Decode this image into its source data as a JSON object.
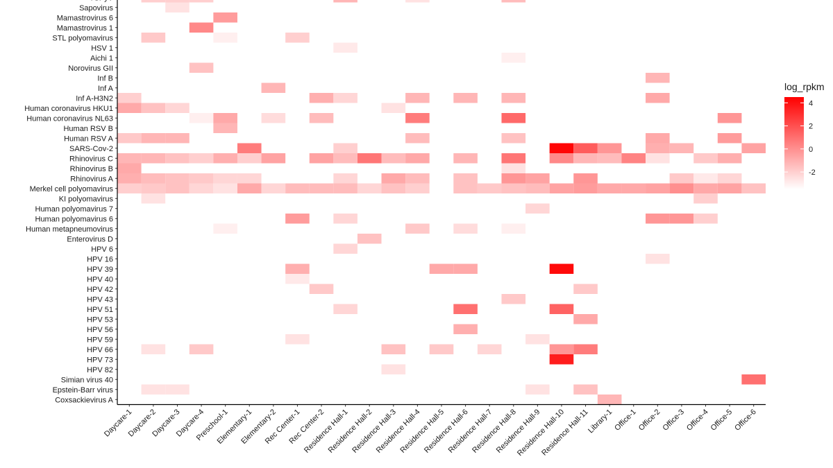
{
  "chart_data": {
    "type": "heatmap",
    "legend": {
      "title": "log_rpkm",
      "ticks": [
        4,
        2,
        0,
        -2
      ],
      "range": [
        -3.5,
        4.5
      ],
      "colors": [
        "#ffffff",
        "#ff0000"
      ],
      "placement": "right"
    },
    "colors": {
      "low": "#ffffff",
      "high": "#ff0000",
      "axis": "#000000"
    },
    "x_categories": [
      "Daycare-1",
      "Daycare-2",
      "Daycare-3",
      "Daycare-4",
      "Preschool-1",
      "Elementary-1",
      "Elementary-2",
      "Rec Center-1",
      "Rec Center-2",
      "Residence Hall-1",
      "Residence Hall-2",
      "Residence Hall-3",
      "Residence Hall-4",
      "Residence Hall-5",
      "Residence Hall-6",
      "Residence Hall-7",
      "Residence Hall-8",
      "Residence Hall-9",
      "Residence Hall-10",
      "Residence Hall-11",
      "Library-1",
      "Office-1",
      "Office-2",
      "Office-3",
      "Office-4",
      "Office-5",
      "Office-6"
    ],
    "y_categories": [
      "TSPyV",
      "Sapovirus",
      "Mamastrovirus 6",
      "Mamastrovirus 1",
      "STL polyomavirus",
      "HSV 1",
      "Aichi 1",
      "Norovirus GII",
      "Inf B",
      "Inf A",
      "Inf A-H3N2",
      "Human coronavirus HKU1",
      "Human coronavirus NL63",
      "Human RSV B",
      "Human RSV A",
      "SARS-Cov-2",
      "Rhinovirus C",
      "Rhinovirus B",
      "Rhinovirus A",
      "Merkel cell polyomavirus",
      "KI polyomavirus",
      "Human polyomavirus 7",
      "Human polyomavirus 6",
      "Human metapneumovirus",
      "Enterovirus D",
      "HPV 6",
      "HPV 16",
      "HPV 39",
      "HPV 40",
      "HPV 42",
      "HPV 43",
      "HPV 51",
      "HPV 53",
      "HPV 56",
      "HPV 59",
      "HPV 66",
      "HPV 73",
      "HPV 82",
      "Simian virus 40",
      "Epstein-Barr virus",
      "Coxsackievirus A"
    ],
    "cells": [
      {
        "x": "Daycare-2",
        "y": "TSPyV",
        "v": -2
      },
      {
        "x": "Daycare-3",
        "y": "TSPyV",
        "v": -2
      },
      {
        "x": "Daycare-4",
        "y": "TSPyV",
        "v": -2
      },
      {
        "x": "Residence Hall-1",
        "y": "TSPyV",
        "v": -1.2
      },
      {
        "x": "Residence Hall-4",
        "y": "TSPyV",
        "v": -2.6
      },
      {
        "x": "Residence Hall-8",
        "y": "TSPyV",
        "v": -1.4
      },
      {
        "x": "Daycare-3",
        "y": "Sapovirus",
        "v": -2.6
      },
      {
        "x": "Preschool-1",
        "y": "Mamastrovirus 6",
        "v": -0.4
      },
      {
        "x": "Daycare-4",
        "y": "Mamastrovirus 1",
        "v": 0.2
      },
      {
        "x": "Daycare-2",
        "y": "STL polyomavirus",
        "v": -1.8
      },
      {
        "x": "Preschool-1",
        "y": "STL polyomavirus",
        "v": -3
      },
      {
        "x": "Rec Center-1",
        "y": "STL polyomavirus",
        "v": -2
      },
      {
        "x": "Residence Hall-1",
        "y": "HSV 1",
        "v": -2.8
      },
      {
        "x": "Residence Hall-8",
        "y": "Aichi 1",
        "v": -3
      },
      {
        "x": "Daycare-4",
        "y": "Norovirus GII",
        "v": -1.6
      },
      {
        "x": "Office-2",
        "y": "Inf B",
        "v": -1.2
      },
      {
        "x": "Elementary-2",
        "y": "Inf A",
        "v": -1.2
      },
      {
        "x": "Daycare-1",
        "y": "Inf A-H3N2",
        "v": -2
      },
      {
        "x": "Rec Center-2",
        "y": "Inf A-H3N2",
        "v": -1
      },
      {
        "x": "Residence Hall-1",
        "y": "Inf A-H3N2",
        "v": -2.2
      },
      {
        "x": "Residence Hall-4",
        "y": "Inf A-H3N2",
        "v": -1.2
      },
      {
        "x": "Residence Hall-6",
        "y": "Inf A-H3N2",
        "v": -1.2
      },
      {
        "x": "Residence Hall-8",
        "y": "Inf A-H3N2",
        "v": -1.2
      },
      {
        "x": "Office-2",
        "y": "Inf A-H3N2",
        "v": -0.8
      },
      {
        "x": "Daycare-1",
        "y": "Human coronavirus HKU1",
        "v": -0.8
      },
      {
        "x": "Daycare-2",
        "y": "Human coronavirus HKU1",
        "v": -1.6
      },
      {
        "x": "Daycare-3",
        "y": "Human coronavirus HKU1",
        "v": -2.2
      },
      {
        "x": "Residence Hall-3",
        "y": "Human coronavirus HKU1",
        "v": -2.6
      },
      {
        "x": "Daycare-4",
        "y": "Human coronavirus NL63",
        "v": -3
      },
      {
        "x": "Preschool-1",
        "y": "Human coronavirus NL63",
        "v": -0.8
      },
      {
        "x": "Elementary-2",
        "y": "Human coronavirus NL63",
        "v": -2.4
      },
      {
        "x": "Rec Center-2",
        "y": "Human coronavirus NL63",
        "v": -1.4
      },
      {
        "x": "Residence Hall-4",
        "y": "Human coronavirus NL63",
        "v": 0.6
      },
      {
        "x": "Residence Hall-8",
        "y": "Human coronavirus NL63",
        "v": 1.2
      },
      {
        "x": "Office-5",
        "y": "Human coronavirus NL63",
        "v": -0.2
      },
      {
        "x": "Preschool-1",
        "y": "Human RSV B",
        "v": -1.2
      },
      {
        "x": "Daycare-1",
        "y": "Human RSV A",
        "v": -1.8
      },
      {
        "x": "Daycare-2",
        "y": "Human RSV A",
        "v": -1.2
      },
      {
        "x": "Daycare-3",
        "y": "Human RSV A",
        "v": -1.2
      },
      {
        "x": "Residence Hall-4",
        "y": "Human RSV A",
        "v": -1.4
      },
      {
        "x": "Residence Hall-8",
        "y": "Human RSV A",
        "v": -1.6
      },
      {
        "x": "Office-2",
        "y": "Human RSV A",
        "v": -0.8
      },
      {
        "x": "Office-5",
        "y": "Human RSV A",
        "v": -0.4
      },
      {
        "x": "Elementary-1",
        "y": "SARS-Cov-2",
        "v": 0.6
      },
      {
        "x": "Residence Hall-1",
        "y": "SARS-Cov-2",
        "v": -2
      },
      {
        "x": "Residence Hall-10",
        "y": "SARS-Cov-2",
        "v": 4.3
      },
      {
        "x": "Residence Hall-11",
        "y": "SARS-Cov-2",
        "v": 1.6
      },
      {
        "x": "Library-1",
        "y": "SARS-Cov-2",
        "v": -0.2
      },
      {
        "x": "Office-2",
        "y": "SARS-Cov-2",
        "v": -1
      },
      {
        "x": "Office-3",
        "y": "SARS-Cov-2",
        "v": -1.2
      },
      {
        "x": "Office-6",
        "y": "SARS-Cov-2",
        "v": -0.6
      },
      {
        "x": "Daycare-1",
        "y": "Rhinovirus C",
        "v": -1.2
      },
      {
        "x": "Daycare-2",
        "y": "Rhinovirus C",
        "v": -1.2
      },
      {
        "x": "Daycare-3",
        "y": "Rhinovirus C",
        "v": -1.6
      },
      {
        "x": "Daycare-4",
        "y": "Rhinovirus C",
        "v": -2
      },
      {
        "x": "Preschool-1",
        "y": "Rhinovirus C",
        "v": -1
      },
      {
        "x": "Elementary-1",
        "y": "Rhinovirus C",
        "v": -2
      },
      {
        "x": "Elementary-2",
        "y": "Rhinovirus C",
        "v": -0.6
      },
      {
        "x": "Rec Center-2",
        "y": "Rhinovirus C",
        "v": -0.6
      },
      {
        "x": "Residence Hall-1",
        "y": "Rhinovirus C",
        "v": -1.4
      },
      {
        "x": "Residence Hall-2",
        "y": "Rhinovirus C",
        "v": 0.8
      },
      {
        "x": "Residence Hall-3",
        "y": "Rhinovirus C",
        "v": -1.4
      },
      {
        "x": "Residence Hall-4",
        "y": "Rhinovirus C",
        "v": -0.8
      },
      {
        "x": "Residence Hall-6",
        "y": "Rhinovirus C",
        "v": -1.2
      },
      {
        "x": "Residence Hall-8",
        "y": "Rhinovirus C",
        "v": 0.8
      },
      {
        "x": "Residence Hall-10",
        "y": "Rhinovirus C",
        "v": 0.2
      },
      {
        "x": "Residence Hall-11",
        "y": "Rhinovirus C",
        "v": -1.2
      },
      {
        "x": "Library-1",
        "y": "Rhinovirus C",
        "v": -1.4
      },
      {
        "x": "Office-1",
        "y": "Rhinovirus C",
        "v": 0.4
      },
      {
        "x": "Office-2",
        "y": "Rhinovirus C",
        "v": -2.6
      },
      {
        "x": "Office-4",
        "y": "Rhinovirus C",
        "v": -1.8
      },
      {
        "x": "Office-5",
        "y": "Rhinovirus C",
        "v": -1
      },
      {
        "x": "Daycare-1",
        "y": "Rhinovirus B",
        "v": -0.8
      },
      {
        "x": "Residence Hall-8",
        "y": "Rhinovirus B",
        "v": -2.6
      },
      {
        "x": "Daycare-1",
        "y": "Rhinovirus A",
        "v": -1
      },
      {
        "x": "Daycare-2",
        "y": "Rhinovirus A",
        "v": -1.4
      },
      {
        "x": "Daycare-3",
        "y": "Rhinovirus A",
        "v": -1.6
      },
      {
        "x": "Daycare-4",
        "y": "Rhinovirus A",
        "v": -1.8
      },
      {
        "x": "Preschool-1",
        "y": "Rhinovirus A",
        "v": -2.2
      },
      {
        "x": "Elementary-1",
        "y": "Rhinovirus A",
        "v": -2.2
      },
      {
        "x": "Residence Hall-1",
        "y": "Rhinovirus A",
        "v": -2.2
      },
      {
        "x": "Residence Hall-3",
        "y": "Rhinovirus A",
        "v": -0.8
      },
      {
        "x": "Residence Hall-4",
        "y": "Rhinovirus A",
        "v": -1.4
      },
      {
        "x": "Residence Hall-6",
        "y": "Rhinovirus A",
        "v": -1.6
      },
      {
        "x": "Residence Hall-8",
        "y": "Rhinovirus A",
        "v": -0.2
      },
      {
        "x": "Residence Hall-9",
        "y": "Rhinovirus A",
        "v": -0.6
      },
      {
        "x": "Residence Hall-11",
        "y": "Rhinovirus A",
        "v": -0.2
      },
      {
        "x": "Office-3",
        "y": "Rhinovirus A",
        "v": -1.8
      },
      {
        "x": "Office-4",
        "y": "Rhinovirus A",
        "v": -2.8
      },
      {
        "x": "Office-5",
        "y": "Rhinovirus A",
        "v": -2.2
      },
      {
        "x": "Daycare-1",
        "y": "Merkel cell polyomavirus",
        "v": -2
      },
      {
        "x": "Daycare-2",
        "y": "Merkel cell polyomavirus",
        "v": -1.8
      },
      {
        "x": "Daycare-3",
        "y": "Merkel cell polyomavirus",
        "v": -1.6
      },
      {
        "x": "Daycare-4",
        "y": "Merkel cell polyomavirus",
        "v": -2.2
      },
      {
        "x": "Preschool-1",
        "y": "Merkel cell polyomavirus",
        "v": -2.6
      },
      {
        "x": "Elementary-1",
        "y": "Merkel cell polyomavirus",
        "v": -0.8
      },
      {
        "x": "Elementary-2",
        "y": "Merkel cell polyomavirus",
        "v": -2.2
      },
      {
        "x": "Rec Center-1",
        "y": "Merkel cell polyomavirus",
        "v": -1.4
      },
      {
        "x": "Rec Center-2",
        "y": "Merkel cell polyomavirus",
        "v": -1.4
      },
      {
        "x": "Residence Hall-1",
        "y": "Merkel cell polyomavirus",
        "v": -1.4
      },
      {
        "x": "Residence Hall-2",
        "y": "Merkel cell polyomavirus",
        "v": -2.2
      },
      {
        "x": "Residence Hall-3",
        "y": "Merkel cell polyomavirus",
        "v": -1.6
      },
      {
        "x": "Residence Hall-4",
        "y": "Merkel cell polyomavirus",
        "v": -2
      },
      {
        "x": "Residence Hall-6",
        "y": "Merkel cell polyomavirus",
        "v": -1.6
      },
      {
        "x": "Residence Hall-7",
        "y": "Merkel cell polyomavirus",
        "v": -1.8
      },
      {
        "x": "Residence Hall-8",
        "y": "Merkel cell polyomavirus",
        "v": -1.6
      },
      {
        "x": "Residence Hall-9",
        "y": "Merkel cell polyomavirus",
        "v": -1.4
      },
      {
        "x": "Residence Hall-10",
        "y": "Merkel cell polyomavirus",
        "v": -0.6
      },
      {
        "x": "Residence Hall-11",
        "y": "Merkel cell polyomavirus",
        "v": -0.4
      },
      {
        "x": "Library-1",
        "y": "Merkel cell polyomavirus",
        "v": -0.8
      },
      {
        "x": "Office-1",
        "y": "Merkel cell polyomavirus",
        "v": -0.8
      },
      {
        "x": "Office-2",
        "y": "Merkel cell polyomavirus",
        "v": -0.6
      },
      {
        "x": "Office-3",
        "y": "Merkel cell polyomavirus",
        "v": 0
      },
      {
        "x": "Office-4",
        "y": "Merkel cell polyomavirus",
        "v": -0.8
      },
      {
        "x": "Office-5",
        "y": "Merkel cell polyomavirus",
        "v": -0.6
      },
      {
        "x": "Office-6",
        "y": "Merkel cell polyomavirus",
        "v": -1.6
      },
      {
        "x": "Daycare-2",
        "y": "KI polyomavirus",
        "v": -2.6
      },
      {
        "x": "Office-4",
        "y": "KI polyomavirus",
        "v": -2
      },
      {
        "x": "Residence Hall-9",
        "y": "Human polyomavirus 7",
        "v": -2.2
      },
      {
        "x": "Rec Center-1",
        "y": "Human polyomavirus 6",
        "v": -0.4
      },
      {
        "x": "Residence Hall-1",
        "y": "Human polyomavirus 6",
        "v": -2.2
      },
      {
        "x": "Office-2",
        "y": "Human polyomavirus 6",
        "v": -0.2
      },
      {
        "x": "Office-3",
        "y": "Human polyomavirus 6",
        "v": -0.2
      },
      {
        "x": "Office-4",
        "y": "Human polyomavirus 6",
        "v": -2
      },
      {
        "x": "Preschool-1",
        "y": "Human metapneumovirus",
        "v": -3
      },
      {
        "x": "Residence Hall-4",
        "y": "Human metapneumovirus",
        "v": -1.8
      },
      {
        "x": "Residence Hall-6",
        "y": "Human metapneumovirus",
        "v": -2.4
      },
      {
        "x": "Residence Hall-8",
        "y": "Human metapneumovirus",
        "v": -3
      },
      {
        "x": "Residence Hall-2",
        "y": "Enterovirus D",
        "v": -1.6
      },
      {
        "x": "Residence Hall-1",
        "y": "HPV 6",
        "v": -2.2
      },
      {
        "x": "Office-2",
        "y": "HPV 16",
        "v": -2.6
      },
      {
        "x": "Rec Center-1",
        "y": "HPV 39",
        "v": -1
      },
      {
        "x": "Residence Hall-5",
        "y": "HPV 39",
        "v": -0.8
      },
      {
        "x": "Residence Hall-6",
        "y": "HPV 39",
        "v": -0.8
      },
      {
        "x": "Residence Hall-10",
        "y": "HPV 39",
        "v": 4.2
      },
      {
        "x": "Rec Center-1",
        "y": "HPV 40",
        "v": -2.8
      },
      {
        "x": "Rec Center-2",
        "y": "HPV 42",
        "v": -1.8
      },
      {
        "x": "Residence Hall-11",
        "y": "HPV 42",
        "v": -1.8
      },
      {
        "x": "Residence Hall-8",
        "y": "HPV 43",
        "v": -1.8
      },
      {
        "x": "Residence Hall-1",
        "y": "HPV 51",
        "v": -2.2
      },
      {
        "x": "Residence Hall-6",
        "y": "HPV 51",
        "v": 1
      },
      {
        "x": "Residence Hall-10",
        "y": "HPV 51",
        "v": 1.4
      },
      {
        "x": "Residence Hall-11",
        "y": "HPV 53",
        "v": -0.8
      },
      {
        "x": "Residence Hall-6",
        "y": "HPV 56",
        "v": -1
      },
      {
        "x": "Rec Center-1",
        "y": "HPV 59",
        "v": -2.6
      },
      {
        "x": "Residence Hall-9",
        "y": "HPV 59",
        "v": -2.6
      },
      {
        "x": "Daycare-2",
        "y": "HPV 66",
        "v": -2.6
      },
      {
        "x": "Daycare-4",
        "y": "HPV 66",
        "v": -1.8
      },
      {
        "x": "Residence Hall-3",
        "y": "HPV 66",
        "v": -1.6
      },
      {
        "x": "Residence Hall-5",
        "y": "HPV 66",
        "v": -1.8
      },
      {
        "x": "Residence Hall-7",
        "y": "HPV 66",
        "v": -2.2
      },
      {
        "x": "Residence Hall-10",
        "y": "HPV 66",
        "v": -0.2
      },
      {
        "x": "Residence Hall-11",
        "y": "HPV 66",
        "v": 0.6
      },
      {
        "x": "Residence Hall-10",
        "y": "HPV 73",
        "v": 3.6
      },
      {
        "x": "Residence Hall-3",
        "y": "HPV 82",
        "v": -2.6
      },
      {
        "x": "Office-6",
        "y": "Simian virus 40",
        "v": 1
      },
      {
        "x": "Daycare-2",
        "y": "Epstein-Barr virus",
        "v": -2.6
      },
      {
        "x": "Daycare-3",
        "y": "Epstein-Barr virus",
        "v": -2.6
      },
      {
        "x": "Residence Hall-9",
        "y": "Epstein-Barr virus",
        "v": -2.6
      },
      {
        "x": "Residence Hall-11",
        "y": "Epstein-Barr virus",
        "v": -1.6
      },
      {
        "x": "Library-1",
        "y": "Coxsackievirus A",
        "v": -1.2
      }
    ]
  }
}
